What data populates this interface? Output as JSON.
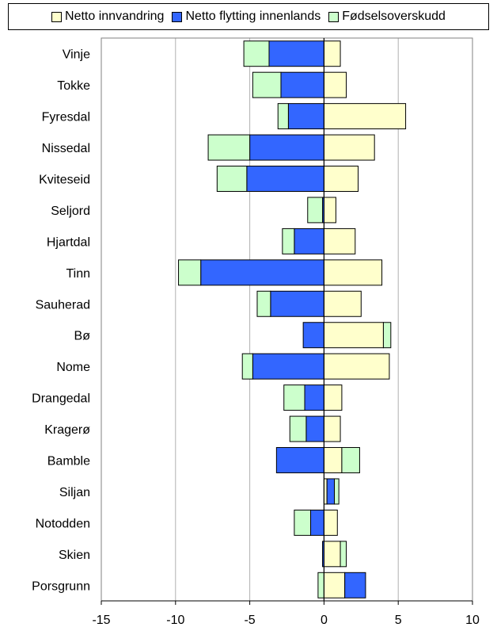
{
  "chart_data": {
    "type": "bar",
    "orientation": "horizontal",
    "stacked": true,
    "title": "",
    "xlabel": "",
    "ylabel": "",
    "xlim": [
      -15,
      10
    ],
    "x_ticks": [
      -15,
      -10,
      -5,
      0,
      5,
      10
    ],
    "grid": true,
    "legend_position": "top",
    "categories": [
      "Vinje",
      "Tokke",
      "Fyresdal",
      "Nissedal",
      "Kviteseid",
      "Seljord",
      "Hjartdal",
      "Tinn",
      "Sauherad",
      "Bø",
      "Nome",
      "Drangedal",
      "Kragerø",
      "Bamble",
      "Siljan",
      "Notodden",
      "Skien",
      "Porsgrunn"
    ],
    "series": [
      {
        "name": "Netto innvandring",
        "color": "#ffffcc",
        "values": [
          1.1,
          1.5,
          5.5,
          3.4,
          2.3,
          0.8,
          2.1,
          3.9,
          2.5,
          4.0,
          4.4,
          1.2,
          1.1,
          1.2,
          0.2,
          0.9,
          1.1,
          1.4
        ]
      },
      {
        "name": "Netto flytting innenlands",
        "color": "#3366ff",
        "values": [
          -3.7,
          -2.9,
          -2.4,
          -5.0,
          -5.2,
          -0.1,
          -2.0,
          -8.3,
          -3.6,
          -1.4,
          -4.8,
          -1.3,
          -1.2,
          -3.2,
          0.5,
          -0.9,
          -0.1,
          1.4
        ]
      },
      {
        "name": "Fødselsoverskudd",
        "color": "#ccffcc",
        "values": [
          -1.7,
          -1.9,
          -0.7,
          -2.8,
          -2.0,
          -1.0,
          -0.8,
          -1.5,
          -0.9,
          0.5,
          -0.7,
          -1.4,
          -1.1,
          1.2,
          0.3,
          -1.1,
          0.4,
          -0.4
        ]
      }
    ]
  }
}
